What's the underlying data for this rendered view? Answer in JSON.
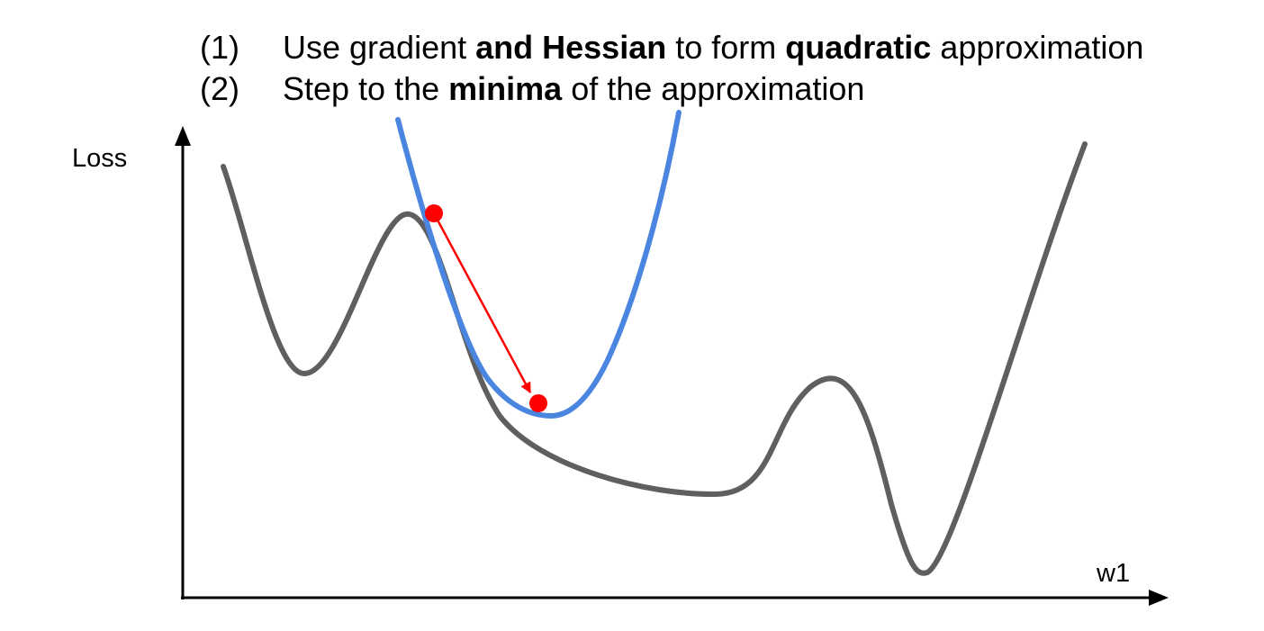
{
  "steps": [
    {
      "number": "(1)",
      "parts": [
        {
          "text": "Use gradient ",
          "bold": false
        },
        {
          "text": "and Hessian",
          "bold": true
        },
        {
          "text": " to form ",
          "bold": false
        },
        {
          "text": "quadratic",
          "bold": true
        },
        {
          "text": " approximation",
          "bold": false
        }
      ]
    },
    {
      "number": "(2)",
      "parts": [
        {
          "text": "Step to the ",
          "bold": false
        },
        {
          "text": "minima",
          "bold": true
        },
        {
          "text": " of the approximation",
          "bold": false
        }
      ]
    }
  ],
  "diagram": {
    "y_axis_label": "Loss",
    "x_axis_label": "w1",
    "colors": {
      "loss_curve": "#5f5f5f",
      "quadratic_approximation": "#4a86e0",
      "step": "#ff0000",
      "axes": "#000000"
    }
  }
}
